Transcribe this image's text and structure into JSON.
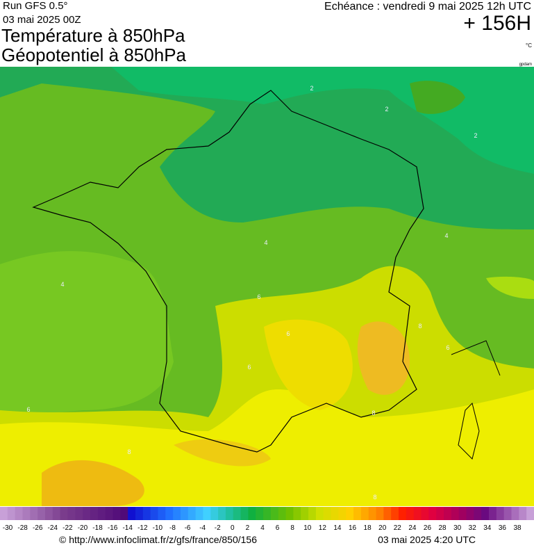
{
  "header": {
    "run": "Run GFS 0.5°",
    "date": "03 mai 2025 00Z",
    "title1": "Température à 850hPa",
    "title2": "Géopotentiel à 850hPa",
    "echeance": "Echéance : vendredi 9 mai 2025 12h UTC",
    "lead": "+ 156H",
    "unit": "°C",
    "credit": "gpdam"
  },
  "map": {
    "contour_labels": [
      "2",
      "2",
      "2",
      "4",
      "4",
      "4",
      "6",
      "6",
      "6",
      "6",
      "6",
      "8",
      "8",
      "8",
      "8"
    ]
  },
  "legend": {
    "labels": [
      -30,
      -28,
      -26,
      -24,
      -22,
      -20,
      -18,
      -16,
      -14,
      -12,
      -10,
      -8,
      -6,
      -4,
      -2,
      0,
      2,
      4,
      6,
      8,
      10,
      12,
      14,
      16,
      18,
      20,
      22,
      24,
      26,
      28,
      30,
      32,
      34,
      36,
      38
    ]
  },
  "footer": {
    "url": "© http://www.infoclimat.fr/z/gfs/france/850/156",
    "timestamp": "03 mai 2025  4:20 UTC"
  }
}
